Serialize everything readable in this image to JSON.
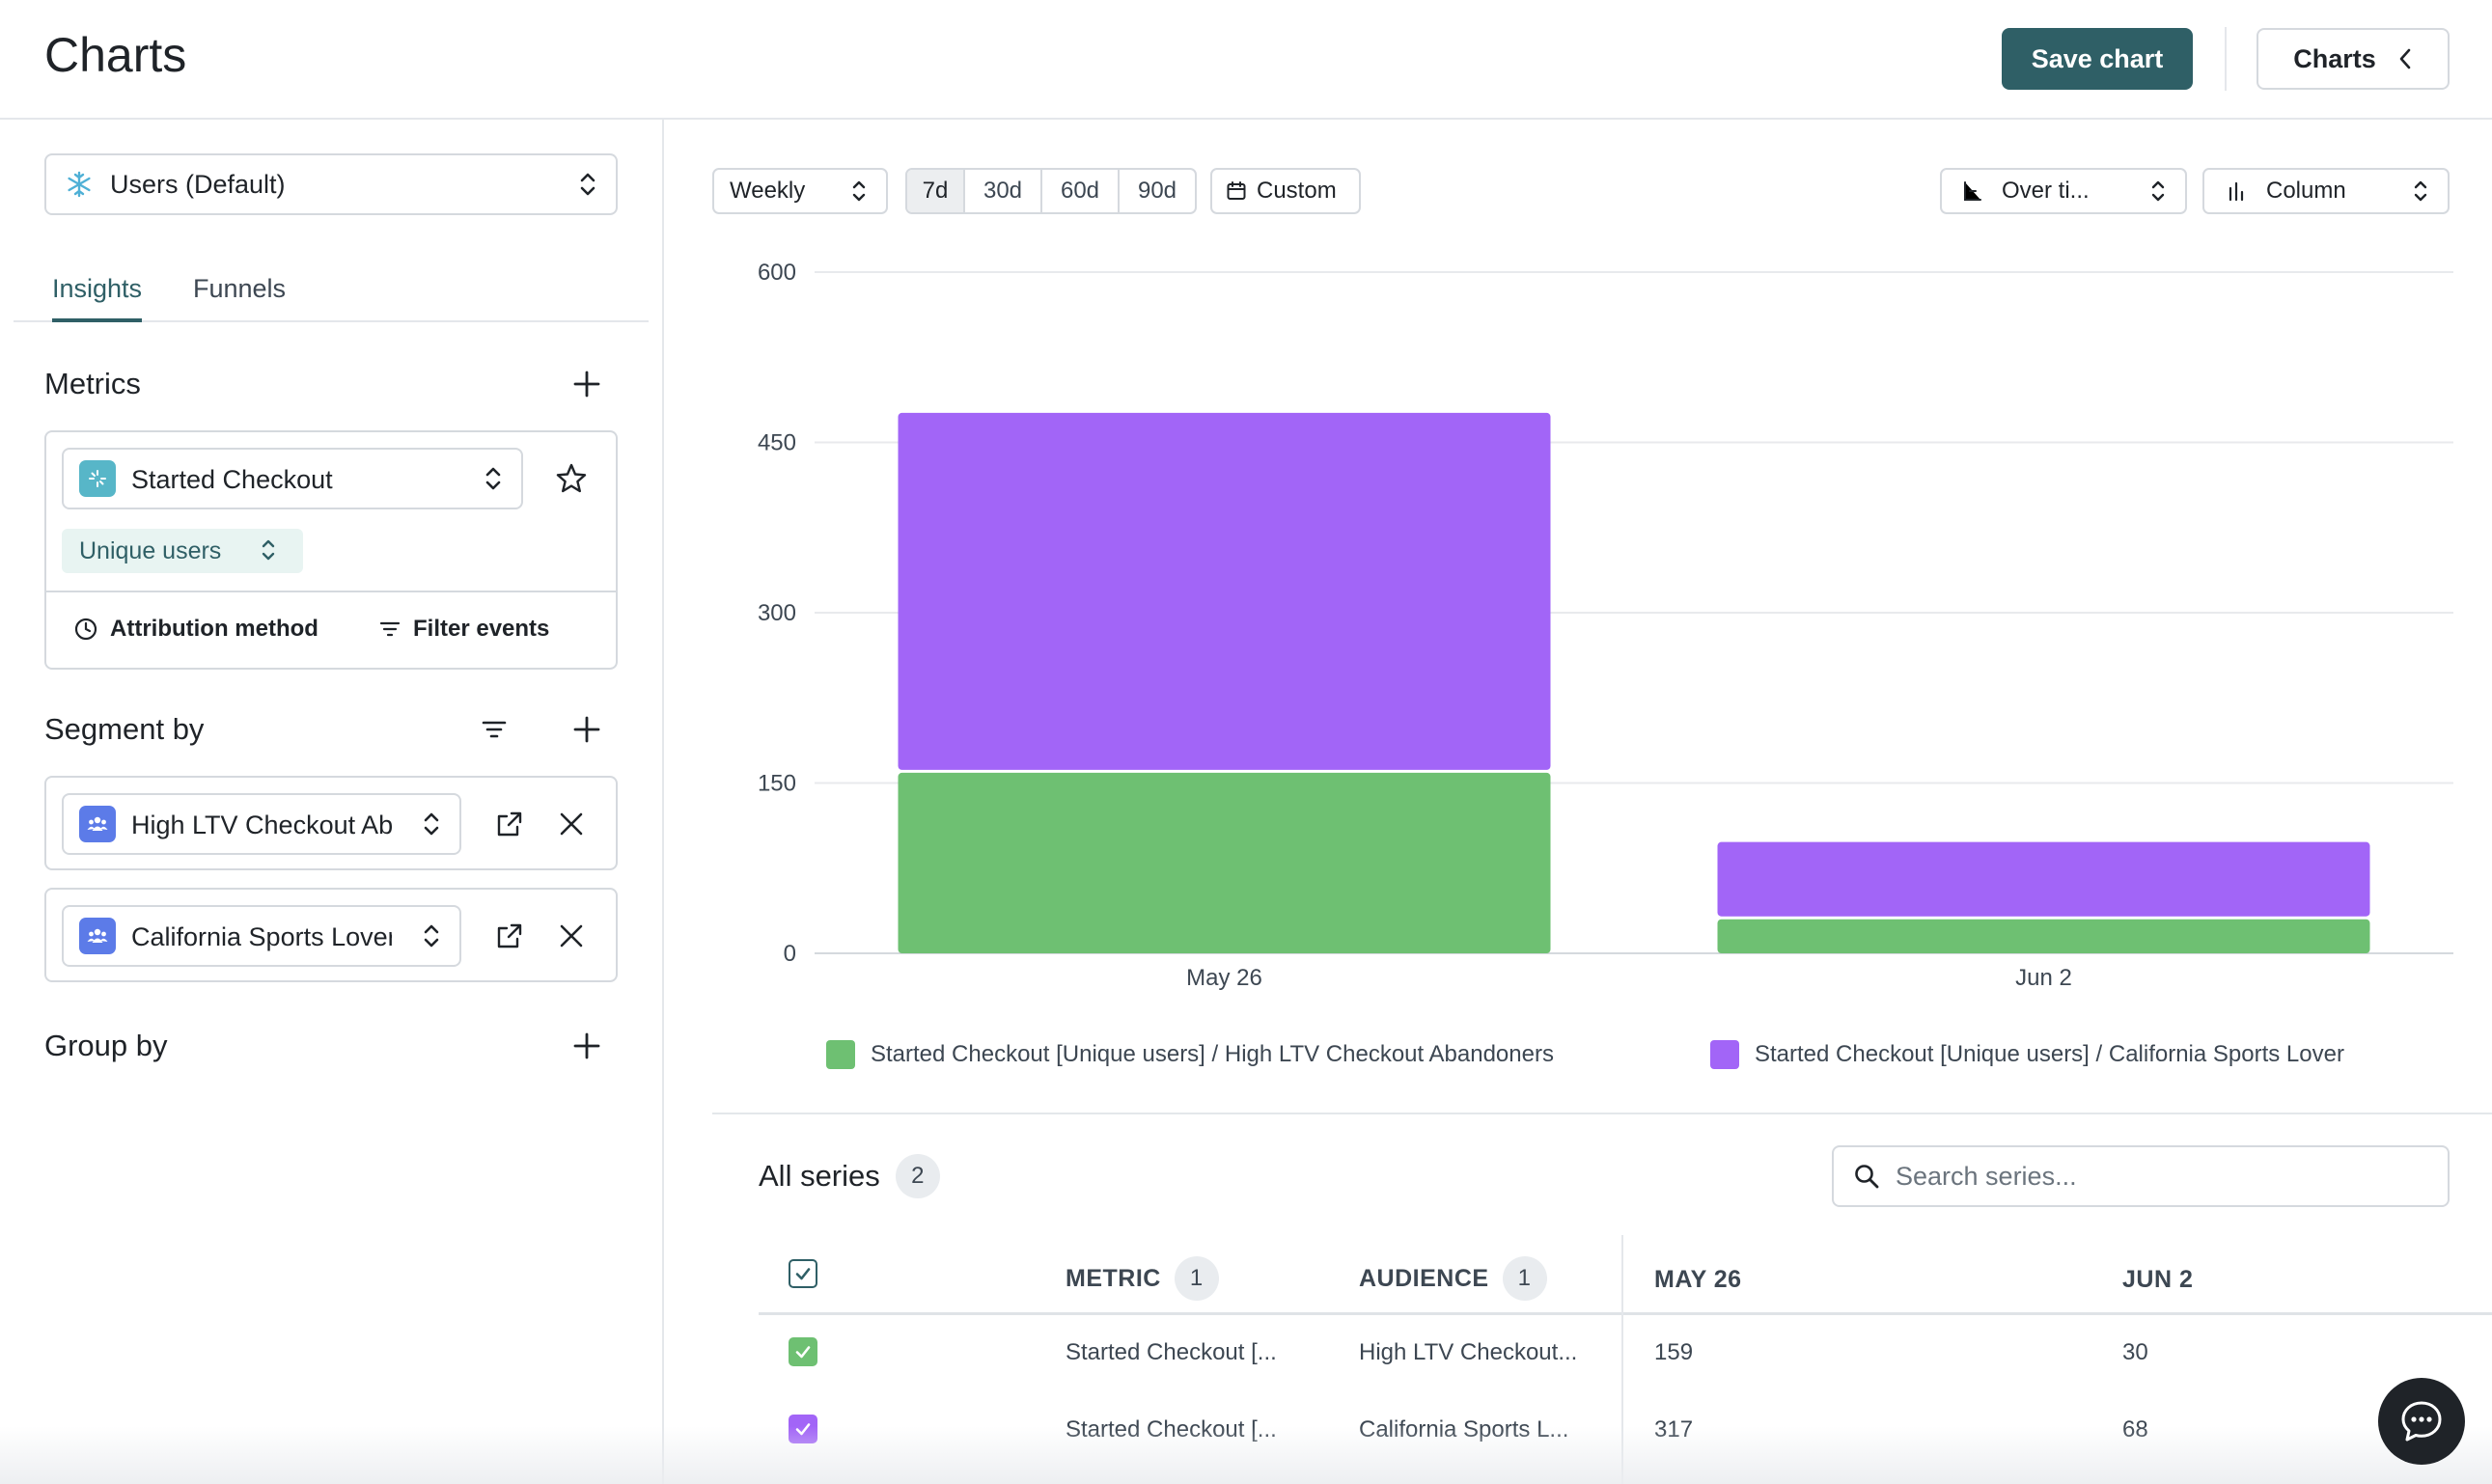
{
  "header": {
    "title": "Charts",
    "save_label": "Save chart",
    "charts_label": "Charts"
  },
  "sidebar": {
    "source_select": "Users (Default)",
    "tabs": [
      {
        "label": "Insights"
      },
      {
        "label": "Funnels"
      }
    ],
    "metrics": {
      "title": "Metrics",
      "event": "Started Checkout",
      "measure": "Unique users",
      "attribution_label": "Attribution method",
      "filter_label": "Filter events"
    },
    "segment_by": {
      "title": "Segment by",
      "segments": [
        {
          "label": "High LTV Checkout Abandoners"
        },
        {
          "label": "California Sports Lover"
        }
      ]
    },
    "group_by": {
      "title": "Group by"
    }
  },
  "controls": {
    "interval": "Weekly",
    "ranges": [
      "7d",
      "30d",
      "60d",
      "90d"
    ],
    "active_range": "7d",
    "custom_label": "Custom",
    "view_mode": "Over ti...",
    "chart_type": "Column"
  },
  "chart_data": {
    "type": "bar",
    "stacked": true,
    "categories": [
      "May 26",
      "Jun 2"
    ],
    "series": [
      {
        "name": "Started Checkout [Unique users] / High LTV Checkout Abandoners",
        "values": [
          159,
          30
        ],
        "color": "#6ec072"
      },
      {
        "name": "Started Checkout [Unique users] / California Sports Lover",
        "values": [
          317,
          68
        ],
        "color": "#a265f7"
      }
    ],
    "yticks": [
      0,
      150,
      300,
      450,
      600
    ],
    "ylim": [
      0,
      600
    ],
    "grid": true,
    "legend": "bottom"
  },
  "series_table": {
    "title": "All series",
    "count": "2",
    "search_placeholder": "Search series...",
    "headers": {
      "metric": "METRIC",
      "metric_count": "1",
      "audience": "AUDIENCE",
      "audience_count": "1",
      "col1": "MAY 26",
      "col2": "JUN 2"
    },
    "rows": [
      {
        "metric": "Started Checkout [...",
        "audience": "High LTV Checkout...",
        "v1": "159",
        "v2": "30",
        "color": "#6ec072"
      },
      {
        "metric": "Started Checkout [...",
        "audience": "California Sports L...",
        "v1": "317",
        "v2": "68",
        "color": "#a265f7"
      }
    ]
  }
}
